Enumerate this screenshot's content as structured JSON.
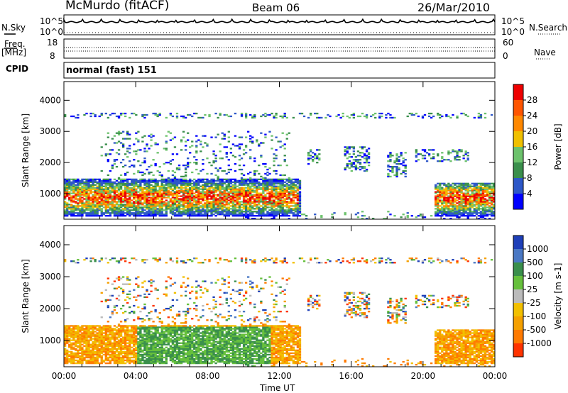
{
  "header": {
    "station": "McMurdo (fitACF)",
    "beam": "Beam 06",
    "date": "26/Mar/2010",
    "cpid_label": "CPID",
    "cpid_value": "normal (fast) 151"
  },
  "aux": {
    "nsky_label": "N.Sky",
    "nsearch_label": "N.Search",
    "freq_label": "Freq.",
    "freq_unit": "[MHz]",
    "nave_label": "Nave",
    "noise_ticks_left": [
      "10^5",
      "10^0"
    ],
    "noise_ticks_right": [
      "10^5",
      "10^0"
    ],
    "freq_ticks_left": [
      "18",
      "8"
    ],
    "nave_ticks_right": [
      "60",
      "0"
    ]
  },
  "chart_data": [
    {
      "type": "heatmap",
      "panel": "power",
      "ylabel": "Slant Range [km]",
      "y_ticks": [
        1000,
        2000,
        3000,
        4000
      ],
      "ylim": [
        180,
        4600
      ],
      "colorbar_label": "Power [dB]",
      "colorbar_ticks": [
        "4",
        "8",
        "12",
        "16",
        "20",
        "24",
        "28"
      ],
      "colorbar_colors": [
        "#0000ff",
        "#2d57c8",
        "#3a8f4c",
        "#6cc26c",
        "#f0c000",
        "#ff8800",
        "#ff5500",
        "#ee0000"
      ]
    },
    {
      "type": "heatmap",
      "panel": "velocity",
      "ylabel": "Slant Range [km]",
      "y_ticks": [
        1000,
        2000,
        3000,
        4000
      ],
      "ylim": [
        180,
        4600
      ],
      "colorbar_label": "Velocity [m s-1]",
      "colorbar_ticks": [
        "1000",
        "500",
        "100",
        "25",
        "-25",
        "-100",
        "-500",
        "-1000"
      ],
      "colorbar_colors": [
        "#1e3fb8",
        "#4a78c4",
        "#3a8f4c",
        "#66c03c",
        "#bbbbbb",
        "#f2c000",
        "#f5a000",
        "#ff7a00",
        "#ff3300"
      ]
    }
  ],
  "x_axis": {
    "label": "Time UT",
    "ticks": [
      "00:00",
      "04:00",
      "08:00",
      "12:00",
      "16:00",
      "20:00",
      "00:00"
    ]
  }
}
